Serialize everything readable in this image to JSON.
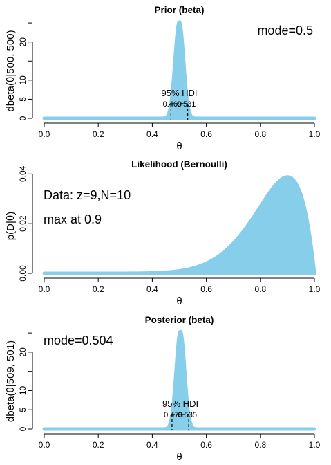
{
  "chart_data": [
    {
      "type": "area",
      "title": "Prior (beta)",
      "xlabel": "θ",
      "ylabel": "dbeta(θ|500, 500)",
      "distribution": "beta",
      "params": [
        500,
        500
      ],
      "xlim": [
        0,
        1
      ],
      "ylim": [
        0,
        25.2
      ],
      "xticks": [
        "0.0",
        "0.2",
        "0.4",
        "0.6",
        "0.8",
        "1.0"
      ],
      "yticks": [
        "0",
        "5",
        "10",
        "20"
      ],
      "fill_color": "#87CEEB",
      "annotation": "mode=0.5",
      "annotation_position": "top-right",
      "hdi": {
        "label": "95% HDI",
        "low": 0.469,
        "high": 0.531,
        "low_label": "0.469",
        "high_label": "0.531"
      }
    },
    {
      "type": "area",
      "title": "Likelihood (Bernoulli)",
      "xlabel": "θ",
      "ylabel": "p(D|θ)",
      "distribution": "bernoulli_likelihood",
      "params": [
        9,
        10
      ],
      "xlim": [
        0,
        1
      ],
      "ylim": [
        0,
        0.0387
      ],
      "xticks": [
        "0.0",
        "0.2",
        "0.4",
        "0.6",
        "0.8",
        "1.0"
      ],
      "yticks": [
        "0.00",
        "0.02",
        "0.04"
      ],
      "fill_color": "#87CEEB",
      "annotations": [
        "Data: z=9,N=10",
        "max at 0.9"
      ],
      "annotation_position": "top-left"
    },
    {
      "type": "area",
      "title": "Posterior (beta)",
      "xlabel": "θ",
      "ylabel": "dbeta(θ|509, 501)",
      "distribution": "beta",
      "params": [
        509,
        501
      ],
      "xlim": [
        0,
        1
      ],
      "ylim": [
        0,
        25.2
      ],
      "xticks": [
        "0.0",
        "0.2",
        "0.4",
        "0.6",
        "0.8",
        "1.0"
      ],
      "yticks": [
        "0",
        "5",
        "10",
        "20"
      ],
      "fill_color": "#87CEEB",
      "annotation": "mode=0.504",
      "annotation_position": "top-left",
      "hdi": {
        "label": "95% HDI",
        "low": 0.473,
        "high": 0.535,
        "low_label": "0.473",
        "high_label": "0.535"
      }
    }
  ]
}
